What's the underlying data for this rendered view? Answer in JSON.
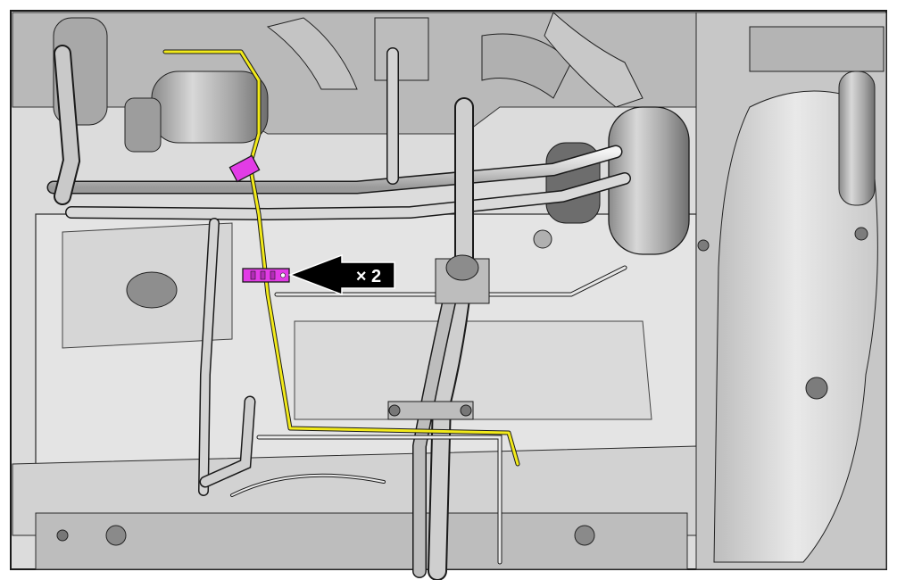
{
  "callout": {
    "quantity_label": "× 2"
  },
  "colors": {
    "highlight_wire": "#f2ea1a",
    "clip_highlight": "#e23ce6",
    "arrow_fill": "#000000",
    "panel_fill": "#e2e2e2",
    "line_art": "#1a1a1a",
    "background": "#ffffff"
  }
}
